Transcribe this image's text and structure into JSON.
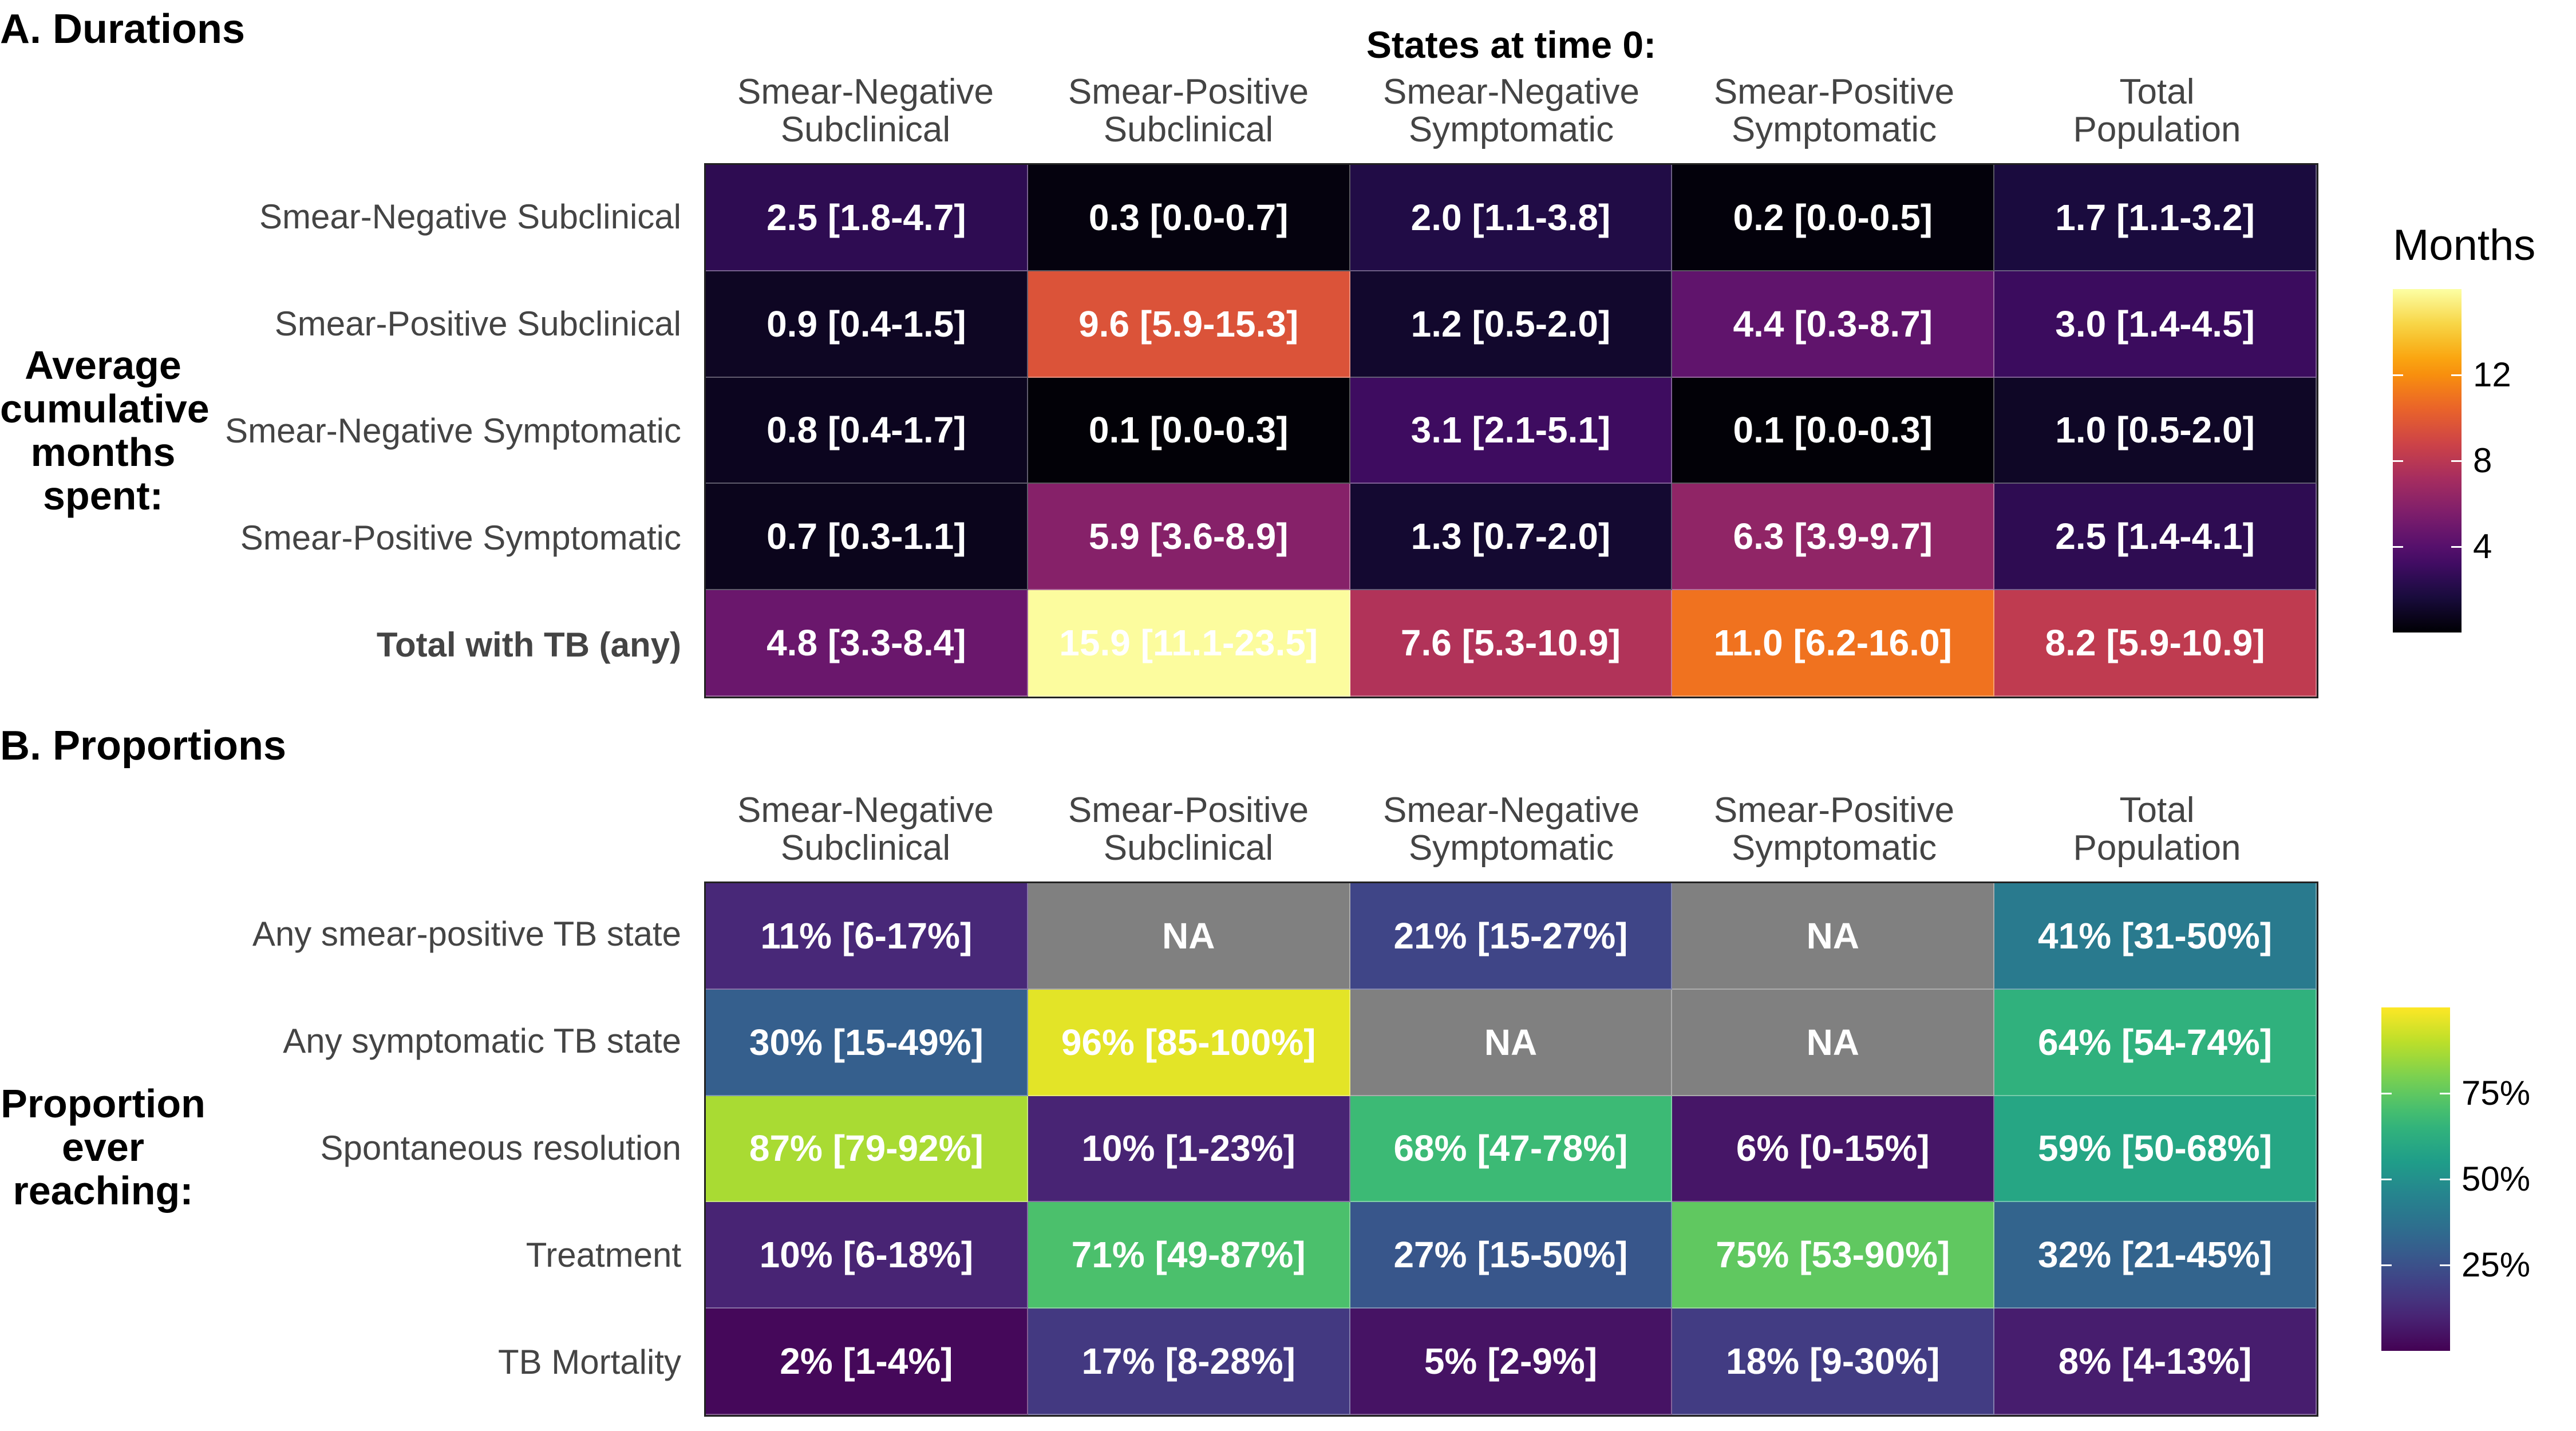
{
  "chart_data": [
    {
      "type": "heatmap",
      "title": "A. Durations",
      "column_header": "States at time 0:",
      "columns": [
        "Smear-Negative\nSubclinical",
        "Smear-Positive\nSubclinical",
        "Smear-Negative\nSymptomatic",
        "Smear-Positive\nSymptomatic",
        "Total\nPopulation"
      ],
      "row_axis_label": "Average\ncumulative\nmonths\nspent:",
      "rows": [
        "Smear-Negative Subclinical",
        "Smear-Positive Subclinical",
        "Smear-Negative Symptomatic",
        "Smear-Positive Symptomatic",
        "Total with TB (any)"
      ],
      "values": [
        [
          2.5,
          0.3,
          2.0,
          0.2,
          1.7
        ],
        [
          0.9,
          9.6,
          1.2,
          4.4,
          3.0
        ],
        [
          0.8,
          0.1,
          3.1,
          0.1,
          1.0
        ],
        [
          0.7,
          5.9,
          1.3,
          6.3,
          2.5
        ],
        [
          4.8,
          15.9,
          7.6,
          11.0,
          8.2
        ]
      ],
      "labels": [
        [
          "2.5 [1.8-4.7]",
          "0.3 [0.0-0.7]",
          "2.0 [1.1-3.8]",
          "0.2 [0.0-0.5]",
          "1.7 [1.1-3.2]"
        ],
        [
          "0.9 [0.4-1.5]",
          "9.6 [5.9-15.3]",
          "1.2 [0.5-2.0]",
          "4.4 [0.3-8.7]",
          "3.0 [1.4-4.5]"
        ],
        [
          "0.8 [0.4-1.7]",
          "0.1 [0.0-0.3]",
          "3.1 [2.1-5.1]",
          "0.1 [0.0-0.3]",
          "1.0 [0.5-2.0]"
        ],
        [
          "0.7 [0.3-1.1]",
          "5.9 [3.6-8.9]",
          "1.3 [0.7-2.0]",
          "6.3 [3.9-9.7]",
          "2.5 [1.4-4.1]"
        ],
        [
          "4.8 [3.3-8.4]",
          "15.9 [11.1-23.5]",
          "7.6 [5.3-10.9]",
          "11.0 [6.2-16.0]",
          "8.2 [5.9-10.9]"
        ]
      ],
      "legend": {
        "title": "Months",
        "range": [
          0,
          16
        ],
        "ticks": [
          4,
          8,
          12
        ],
        "tick_labels": [
          "4",
          "8",
          "12"
        ],
        "colormap": "inferno"
      }
    },
    {
      "type": "heatmap",
      "title": "B. Proportions",
      "columns": [
        "Smear-Negative\nSubclinical",
        "Smear-Positive\nSubclinical",
        "Smear-Negative\nSymptomatic",
        "Smear-Positive\nSymptomatic",
        "Total\nPopulation"
      ],
      "row_axis_label": "Proportion\never\nreaching:",
      "rows": [
        "Any smear-positive TB state",
        "Any symptomatic TB state",
        "Spontaneous resolution",
        "Treatment",
        "TB Mortality"
      ],
      "values": [
        [
          11,
          null,
          21,
          null,
          41
        ],
        [
          30,
          96,
          null,
          null,
          64
        ],
        [
          87,
          10,
          68,
          6,
          59
        ],
        [
          10,
          71,
          27,
          75,
          32
        ],
        [
          2,
          17,
          5,
          18,
          8
        ]
      ],
      "labels": [
        [
          "11% [6-17%]",
          "NA",
          "21% [15-27%]",
          "NA",
          "41% [31-50%]"
        ],
        [
          "30% [15-49%]",
          "96% [85-100%]",
          "NA",
          "NA",
          "64% [54-74%]"
        ],
        [
          "87% [79-92%]",
          "10% [1-23%]",
          "68% [47-78%]",
          "6% [0-15%]",
          "59% [50-68%]"
        ],
        [
          "10% [6-18%]",
          "71% [49-87%]",
          "27% [15-50%]",
          "75% [53-90%]",
          "32% [21-45%]"
        ],
        [
          "2% [1-4%]",
          "17% [8-28%]",
          "5% [2-9%]",
          "18% [9-30%]",
          "8% [4-13%]"
        ]
      ],
      "legend": {
        "range": [
          0,
          100
        ],
        "ticks": [
          25,
          50,
          75
        ],
        "tick_labels": [
          "25%",
          "50%",
          "75%"
        ],
        "colormap": "viridis"
      },
      "na_color": "#808080"
    }
  ]
}
